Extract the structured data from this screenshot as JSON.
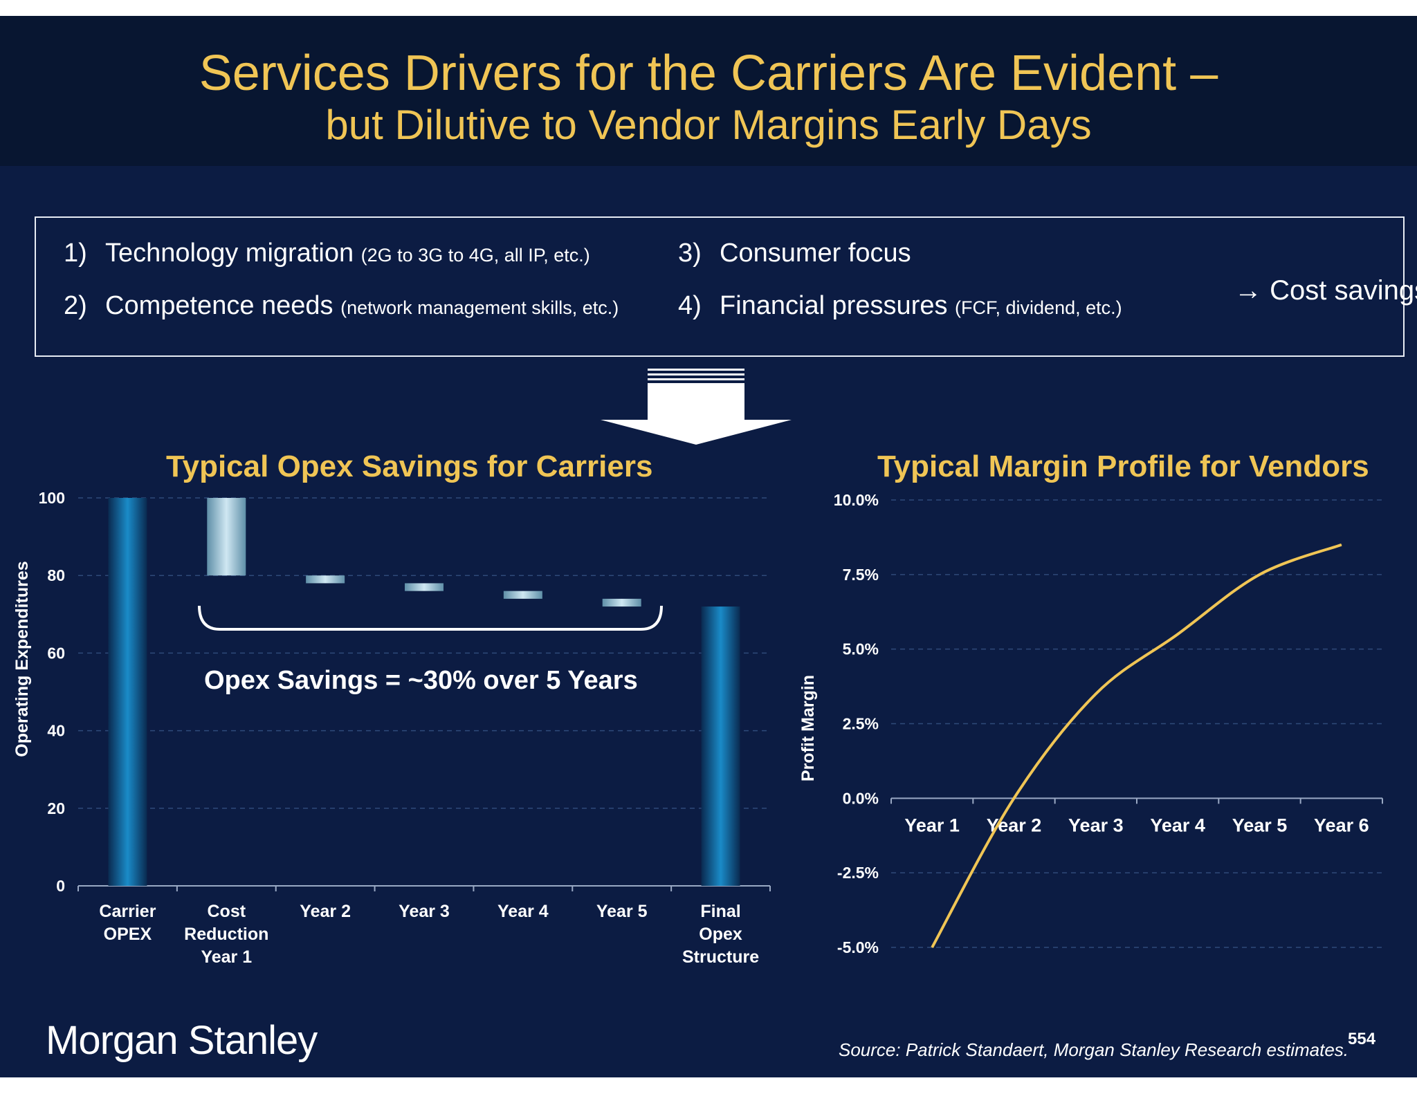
{
  "title": {
    "line1": "Services Drivers for the Carriers Are Evident –",
    "line2": "but Dilutive to Vendor Margins Early Days"
  },
  "drivers": [
    {
      "num": "1)",
      "label": "Technology migration",
      "detail": "(2G to 3G to 4G, all IP, etc.)"
    },
    {
      "num": "2)",
      "label": "Competence needs",
      "detail": "(network management skills, etc.)"
    },
    {
      "num": "3)",
      "label": "Consumer focus",
      "detail": ""
    },
    {
      "num": "4)",
      "label": "Financial pressures",
      "detail": "(FCF, dividend, etc.)"
    }
  ],
  "outcome": {
    "arrow": "→",
    "label": "Cost savings"
  },
  "annotation": "Opex Savings = ~30% over 5 Years",
  "brand": "Morgan Stanley",
  "source": "Source: Patrick Standaert, Morgan Stanley Research estimates.",
  "page_number": "554",
  "colors": {
    "background": "#0c1c43",
    "title_band": "#081631",
    "accent_gold": "#f0c555",
    "bar_blue": "#1a7fb8",
    "line_gold": "#f0c555"
  },
  "chart_data": [
    {
      "type": "bar",
      "subtype": "waterfall",
      "title": "Typical Opex Savings for Carriers",
      "xlabel": "",
      "ylabel": "Operating Expenditures",
      "categories": [
        [
          "Carrier",
          "OPEX"
        ],
        [
          "Cost",
          "Reduction",
          "Year 1"
        ],
        [
          "Year 2"
        ],
        [
          "Year 3"
        ],
        [
          "Year 4"
        ],
        [
          "Year 5"
        ],
        [
          "Final",
          "Opex",
          "Structure"
        ]
      ],
      "bars": [
        {
          "start": 0,
          "end": 100,
          "kind": "total"
        },
        {
          "start": 80,
          "end": 100,
          "kind": "decrease"
        },
        {
          "start": 78,
          "end": 80,
          "kind": "decrease"
        },
        {
          "start": 76,
          "end": 78,
          "kind": "decrease"
        },
        {
          "start": 74,
          "end": 76,
          "kind": "decrease"
        },
        {
          "start": 72,
          "end": 74,
          "kind": "decrease"
        },
        {
          "start": 0,
          "end": 72,
          "kind": "total"
        }
      ],
      "yticks": [
        "0",
        "20",
        "40",
        "60",
        "80",
        "100"
      ],
      "ylim": [
        0,
        100
      ],
      "grid": true
    },
    {
      "type": "line",
      "title": "Typical Margin Profile for Vendors",
      "xlabel": "",
      "ylabel": "Profit Margin",
      "categories": [
        "Year 1",
        "Year 2",
        "Year 3",
        "Year 4",
        "Year 5",
        "Year 6"
      ],
      "series": [
        {
          "values": [
            -5.0,
            0.0,
            3.5,
            5.5,
            7.5,
            8.5
          ]
        }
      ],
      "yticks": [
        "10.0%",
        "7.5%",
        "5.0%",
        "2.5%",
        "0.0%",
        "-2.5%",
        "-5.0%"
      ],
      "ylim": [
        -5.0,
        10.0
      ],
      "grid": true
    }
  ]
}
